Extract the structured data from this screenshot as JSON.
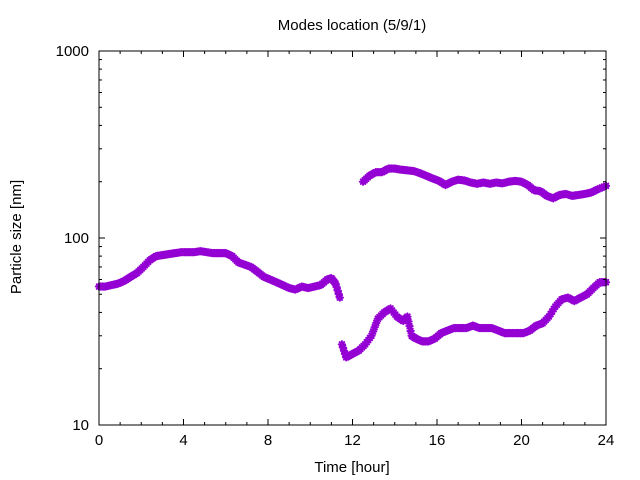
{
  "chart_data": {
    "type": "scatter",
    "title": "Modes location (5/9/1)",
    "xlabel": "Time [hour]",
    "ylabel": "Particle size [nm]",
    "xlim": [
      0,
      24
    ],
    "ylim": [
      10,
      1000
    ],
    "yscale": "log",
    "xticks": [
      0,
      4,
      8,
      12,
      16,
      20,
      24
    ],
    "yticks": [
      10,
      100,
      1000
    ],
    "xtick_labels": [
      "0",
      "4",
      "8",
      "12",
      "16",
      "20",
      "24"
    ],
    "ytick_labels": [
      "10",
      "100",
      "1000"
    ],
    "grid": false,
    "legend": false,
    "marker_color": "#9400D3",
    "series": [
      {
        "points": [
          [
            0.0,
            55
          ],
          [
            0.3,
            55
          ],
          [
            0.6,
            56
          ],
          [
            0.9,
            57
          ],
          [
            1.2,
            59
          ],
          [
            1.5,
            62
          ],
          [
            1.8,
            65
          ],
          [
            2.1,
            70
          ],
          [
            2.4,
            76
          ],
          [
            2.7,
            80
          ],
          [
            3.0,
            81
          ],
          [
            3.3,
            82
          ],
          [
            3.6,
            83
          ],
          [
            3.9,
            84
          ],
          [
            4.2,
            84
          ],
          [
            4.5,
            84
          ],
          [
            4.8,
            85
          ],
          [
            5.1,
            84
          ],
          [
            5.4,
            83
          ],
          [
            5.7,
            83
          ],
          [
            6.0,
            83
          ],
          [
            6.3,
            80
          ],
          [
            6.6,
            74
          ],
          [
            6.9,
            72
          ],
          [
            7.2,
            70
          ],
          [
            7.5,
            66
          ],
          [
            7.8,
            62
          ],
          [
            8.1,
            60
          ],
          [
            8.4,
            58
          ],
          [
            8.7,
            56
          ],
          [
            9.0,
            54
          ],
          [
            9.3,
            53
          ],
          [
            9.6,
            55
          ],
          [
            9.9,
            54
          ],
          [
            10.2,
            55
          ],
          [
            10.5,
            56
          ],
          [
            10.8,
            60
          ],
          [
            11.0,
            61
          ],
          [
            11.2,
            57
          ],
          [
            11.4,
            48
          ]
        ]
      },
      {
        "points": [
          [
            11.5,
            27
          ],
          [
            11.7,
            23
          ],
          [
            12.0,
            24
          ],
          [
            12.3,
            25
          ],
          [
            12.6,
            27
          ],
          [
            12.9,
            30
          ],
          [
            13.2,
            37
          ],
          [
            13.5,
            40
          ],
          [
            13.8,
            42
          ],
          [
            14.1,
            38
          ],
          [
            14.4,
            36
          ],
          [
            14.6,
            38
          ],
          [
            14.8,
            30
          ],
          [
            15.0,
            29
          ],
          [
            15.3,
            28
          ],
          [
            15.6,
            28
          ],
          [
            15.9,
            29
          ],
          [
            16.2,
            31
          ],
          [
            16.5,
            32
          ],
          [
            16.8,
            33
          ],
          [
            17.1,
            33
          ],
          [
            17.4,
            33
          ],
          [
            17.7,
            34
          ],
          [
            18.0,
            33
          ],
          [
            18.3,
            33
          ],
          [
            18.6,
            33
          ],
          [
            18.9,
            32
          ],
          [
            19.2,
            31
          ],
          [
            19.5,
            31
          ],
          [
            19.8,
            31
          ],
          [
            20.1,
            31
          ],
          [
            20.4,
            32
          ],
          [
            20.7,
            34
          ],
          [
            21.0,
            35
          ],
          [
            21.3,
            38
          ],
          [
            21.6,
            43
          ],
          [
            21.9,
            47
          ],
          [
            22.2,
            48
          ],
          [
            22.5,
            46
          ],
          [
            22.8,
            48
          ],
          [
            23.1,
            50
          ],
          [
            23.4,
            54
          ],
          [
            23.7,
            58
          ],
          [
            24.0,
            58
          ]
        ]
      },
      {
        "points": [
          [
            12.5,
            200
          ],
          [
            12.8,
            215
          ],
          [
            13.1,
            225
          ],
          [
            13.4,
            225
          ],
          [
            13.7,
            235
          ],
          [
            14.0,
            235
          ],
          [
            14.3,
            232
          ],
          [
            14.6,
            230
          ],
          [
            14.9,
            228
          ],
          [
            15.2,
            222
          ],
          [
            15.5,
            215
          ],
          [
            15.8,
            208
          ],
          [
            16.1,
            202
          ],
          [
            16.4,
            192
          ],
          [
            16.7,
            200
          ],
          [
            17.0,
            205
          ],
          [
            17.3,
            203
          ],
          [
            17.6,
            198
          ],
          [
            17.9,
            195
          ],
          [
            18.2,
            198
          ],
          [
            18.5,
            195
          ],
          [
            18.8,
            198
          ],
          [
            19.1,
            196
          ],
          [
            19.4,
            200
          ],
          [
            19.7,
            202
          ],
          [
            20.0,
            200
          ],
          [
            20.3,
            192
          ],
          [
            20.6,
            180
          ],
          [
            20.9,
            178
          ],
          [
            21.2,
            168
          ],
          [
            21.5,
            163
          ],
          [
            21.8,
            170
          ],
          [
            22.1,
            172
          ],
          [
            22.4,
            168
          ],
          [
            22.7,
            170
          ],
          [
            23.0,
            172
          ],
          [
            23.3,
            175
          ],
          [
            23.6,
            182
          ],
          [
            24.0,
            190
          ]
        ]
      }
    ]
  }
}
